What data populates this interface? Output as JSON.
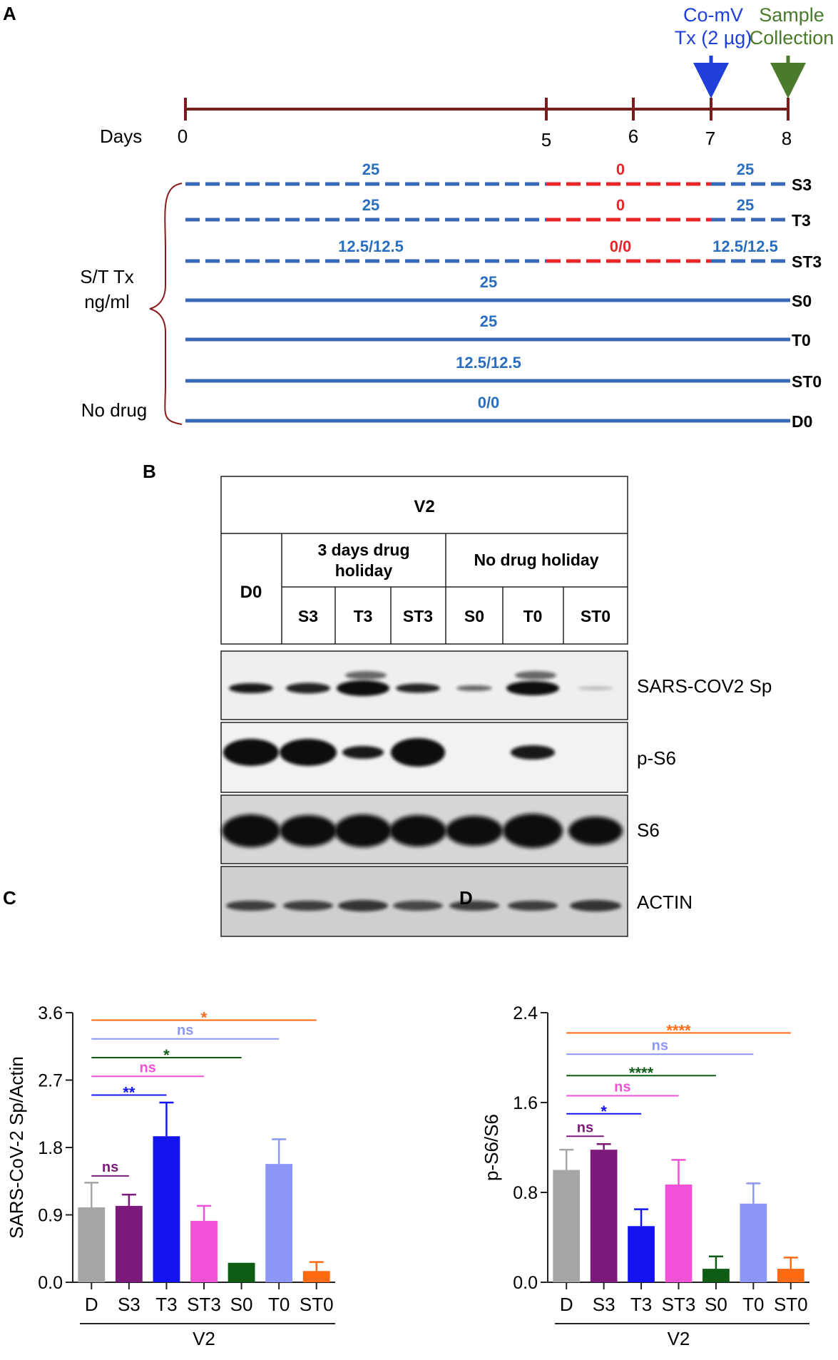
{
  "panel_a": {
    "letter": "A",
    "days_label": "Days",
    "days": [
      "0",
      "5",
      "6",
      "7",
      "8"
    ],
    "events": [
      {
        "line1": "Co-mV",
        "line2": "Tx (2 µg)",
        "color": "#1f3fd8"
      },
      {
        "line1": "Sample",
        "line2": "Collection",
        "color": "#4a7a2a"
      }
    ],
    "rows": [
      {
        "id": "S3",
        "style": "dashed",
        "labels": [
          "25",
          "0",
          "25"
        ]
      },
      {
        "id": "T3",
        "style": "dashed",
        "labels": [
          "25",
          "0",
          "25"
        ]
      },
      {
        "id": "ST3",
        "style": "dashed",
        "labels": [
          "12.5/12.5",
          "0/0",
          "12.5/12.5"
        ]
      },
      {
        "id": "S0",
        "style": "solid",
        "labels": [
          "25"
        ]
      },
      {
        "id": "T0",
        "style": "solid",
        "labels": [
          "25"
        ]
      },
      {
        "id": "ST0",
        "style": "solid",
        "labels": [
          "12.5/12.5"
        ]
      },
      {
        "id": "D0",
        "style": "solid",
        "labels": [
          "0/0"
        ]
      }
    ],
    "bracket_label_1": "S/T Tx",
    "bracket_label_2": "ng/ml",
    "no_drug_label": "No drug",
    "colors": {
      "timeline": "#7a1c1c",
      "drug": "#3a68b8",
      "holiday": "#e8262a",
      "label": "#2a6ec0"
    }
  },
  "panel_b": {
    "letter": "B",
    "virus": "V2",
    "control": "D0",
    "group1_line1": "3 days drug",
    "group1_line2": "holiday",
    "group2": "No drug holiday",
    "lanes": [
      "S3",
      "T3",
      "ST3",
      "S0",
      "T0",
      "ST0"
    ],
    "blots": [
      "SARS-COV2 Sp",
      "p-S6",
      "S6",
      "ACTIN"
    ]
  },
  "panel_c": {
    "letter": "C",
    "chart_data": {
      "type": "bar",
      "categories": [
        "D",
        "S3",
        "T3",
        "ST3",
        "S0",
        "T0",
        "ST0"
      ],
      "values": [
        1.0,
        1.02,
        1.95,
        0.82,
        0.26,
        1.58,
        0.15
      ],
      "errors": [
        0.33,
        0.15,
        0.45,
        0.2,
        0.0,
        0.33,
        0.12
      ],
      "ylabel": "SARS-CoV-2 Sp/Actin",
      "xgroup": "V2",
      "ylim": [
        0,
        3.6
      ],
      "yticks": [
        "0.0",
        "0.9",
        "1.8",
        "2.7",
        "3.6"
      ],
      "colors": [
        "#a6a6a6",
        "#7b1a7b",
        "#1414f0",
        "#f051d6",
        "#0f5c14",
        "#8c96f4",
        "#ff6a12"
      ],
      "significance": [
        {
          "from": 0,
          "to": 1,
          "label": "ns",
          "color": "#7b1a7b",
          "y": 1.42
        },
        {
          "from": 0,
          "to": 2,
          "label": "**",
          "color": "#1414f0",
          "y": 2.5
        },
        {
          "from": 0,
          "to": 3,
          "label": "ns",
          "color": "#f051d6",
          "y": 2.75
        },
        {
          "from": 0,
          "to": 4,
          "label": "*",
          "color": "#0f5c14",
          "y": 3.0
        },
        {
          "from": 0,
          "to": 5,
          "label": "ns",
          "color": "#8c96f4",
          "y": 3.25
        },
        {
          "from": 0,
          "to": 6,
          "label": "*",
          "color": "#ff6a12",
          "y": 3.5
        }
      ]
    }
  },
  "panel_d": {
    "letter": "D",
    "chart_data": {
      "type": "bar",
      "categories": [
        "D",
        "S3",
        "T3",
        "ST3",
        "S0",
        "T0",
        "ST0"
      ],
      "values": [
        1.0,
        1.18,
        0.5,
        0.87,
        0.12,
        0.7,
        0.12
      ],
      "errors": [
        0.18,
        0.05,
        0.15,
        0.22,
        0.11,
        0.18,
        0.1
      ],
      "ylabel": "p-S6/S6",
      "xgroup": "V2",
      "ylim": [
        0,
        2.4
      ],
      "yticks": [
        "0.0",
        "0.8",
        "1.6",
        "2.4"
      ],
      "colors": [
        "#a6a6a6",
        "#7b1a7b",
        "#1414f0",
        "#f051d6",
        "#0f5c14",
        "#8c96f4",
        "#ff6a12"
      ],
      "significance": [
        {
          "from": 0,
          "to": 1,
          "label": "ns",
          "color": "#7b1a7b",
          "y": 1.3
        },
        {
          "from": 0,
          "to": 2,
          "label": "*",
          "color": "#1414f0",
          "y": 1.5
        },
        {
          "from": 0,
          "to": 3,
          "label": "ns",
          "color": "#f051d6",
          "y": 1.66
        },
        {
          "from": 0,
          "to": 4,
          "label": "****",
          "color": "#0f5c14",
          "y": 1.84
        },
        {
          "from": 0,
          "to": 5,
          "label": "ns",
          "color": "#8c96f4",
          "y": 2.03
        },
        {
          "from": 0,
          "to": 6,
          "label": "****",
          "color": "#ff6a12",
          "y": 2.22
        }
      ]
    }
  }
}
